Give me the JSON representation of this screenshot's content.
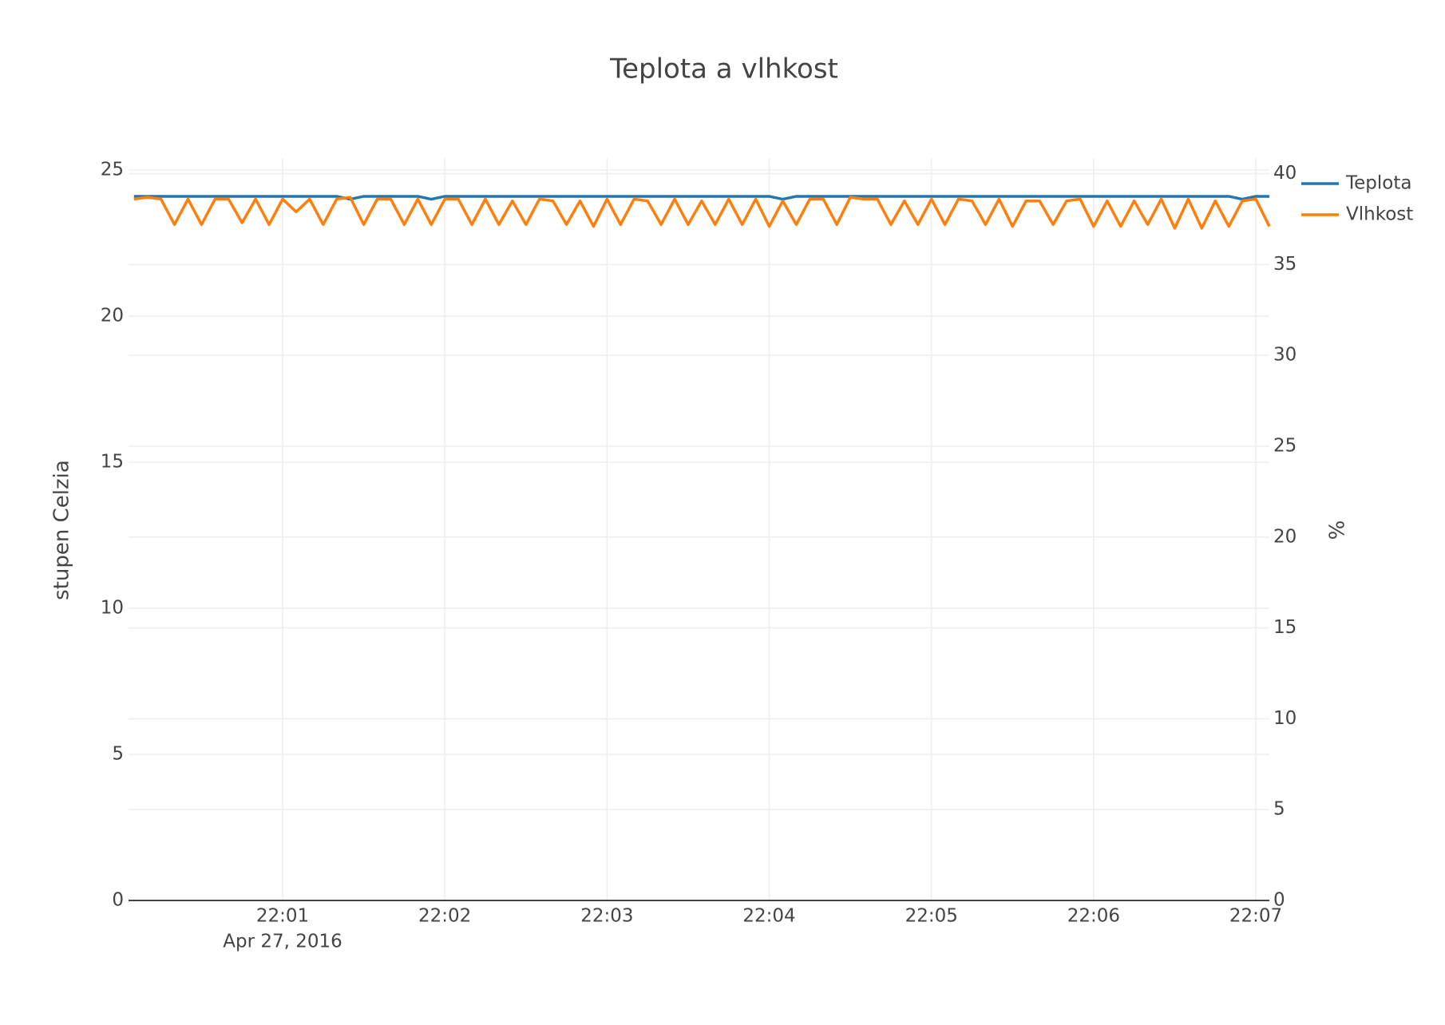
{
  "chart_data": {
    "type": "line",
    "title": "Teplota a vlhkost",
    "ylabel": "stupen Celzia",
    "y2label": "%",
    "x_date_label": "Apr 27, 2016",
    "x": [
      "22:00:05",
      "22:00:10",
      "22:00:15",
      "22:00:20",
      "22:00:25",
      "22:00:30",
      "22:00:35",
      "22:00:40",
      "22:00:45",
      "22:00:50",
      "22:00:55",
      "22:01:00",
      "22:01:05",
      "22:01:10",
      "22:01:15",
      "22:01:20",
      "22:01:25",
      "22:01:30",
      "22:01:35",
      "22:01:40",
      "22:01:45",
      "22:01:50",
      "22:01:55",
      "22:02:00",
      "22:02:05",
      "22:02:10",
      "22:02:15",
      "22:02:20",
      "22:02:25",
      "22:02:30",
      "22:02:35",
      "22:02:40",
      "22:02:45",
      "22:02:50",
      "22:02:55",
      "22:03:00",
      "22:03:05",
      "22:03:10",
      "22:03:15",
      "22:03:20",
      "22:03:25",
      "22:03:30",
      "22:03:35",
      "22:03:40",
      "22:03:45",
      "22:03:50",
      "22:03:55",
      "22:04:00",
      "22:04:05",
      "22:04:10",
      "22:04:15",
      "22:04:20",
      "22:04:25",
      "22:04:30",
      "22:04:35",
      "22:04:40",
      "22:04:45",
      "22:04:50",
      "22:04:55",
      "22:05:00",
      "22:05:05",
      "22:05:10",
      "22:05:15",
      "22:05:20",
      "22:05:25",
      "22:05:30",
      "22:05:35",
      "22:05:40",
      "22:05:45",
      "22:05:50",
      "22:05:55",
      "22:06:00",
      "22:06:05",
      "22:06:10",
      "22:06:15",
      "22:06:20",
      "22:06:25",
      "22:06:30",
      "22:06:35",
      "22:06:40",
      "22:06:45",
      "22:06:50",
      "22:06:55",
      "22:07:00",
      "22:07:05"
    ],
    "series": [
      {
        "name": "Teplota",
        "color": "#1f77b4",
        "axis": "y",
        "values": [
          24.1,
          24.1,
          24.1,
          24.1,
          24.1,
          24.1,
          24.1,
          24.1,
          24.1,
          24.1,
          24.1,
          24.1,
          24.1,
          24.1,
          24.1,
          24.1,
          24.0,
          24.1,
          24.1,
          24.1,
          24.1,
          24.1,
          24.0,
          24.1,
          24.1,
          24.1,
          24.1,
          24.1,
          24.1,
          24.1,
          24.1,
          24.1,
          24.1,
          24.1,
          24.1,
          24.1,
          24.1,
          24.1,
          24.1,
          24.1,
          24.1,
          24.1,
          24.1,
          24.1,
          24.1,
          24.1,
          24.1,
          24.1,
          24.0,
          24.1,
          24.1,
          24.1,
          24.1,
          24.1,
          24.1,
          24.1,
          24.1,
          24.1,
          24.1,
          24.1,
          24.1,
          24.1,
          24.1,
          24.1,
          24.1,
          24.1,
          24.1,
          24.1,
          24.1,
          24.1,
          24.1,
          24.1,
          24.1,
          24.1,
          24.1,
          24.1,
          24.1,
          24.1,
          24.1,
          24.1,
          24.1,
          24.1,
          24.0,
          24.1,
          24.1
        ]
      },
      {
        "name": "Vlhkost",
        "color": "#ff7f0e",
        "axis": "y2",
        "values": [
          38.6,
          38.7,
          38.6,
          37.2,
          38.6,
          37.2,
          38.6,
          38.6,
          37.3,
          38.6,
          37.2,
          38.6,
          37.9,
          38.6,
          37.2,
          38.6,
          38.7,
          37.2,
          38.6,
          38.6,
          37.2,
          38.6,
          37.2,
          38.6,
          38.6,
          37.2,
          38.6,
          37.2,
          38.5,
          37.2,
          38.6,
          38.5,
          37.2,
          38.5,
          37.1,
          38.6,
          37.2,
          38.6,
          38.5,
          37.2,
          38.6,
          37.2,
          38.5,
          37.2,
          38.6,
          37.2,
          38.6,
          37.1,
          38.5,
          37.2,
          38.6,
          38.6,
          37.2,
          38.7,
          38.6,
          38.6,
          37.2,
          38.5,
          37.2,
          38.6,
          37.2,
          38.6,
          38.5,
          37.2,
          38.6,
          37.1,
          38.5,
          38.5,
          37.2,
          38.5,
          38.6,
          37.1,
          38.5,
          37.1,
          38.5,
          37.2,
          38.6,
          37.0,
          38.6,
          37.0,
          38.5,
          37.1,
          38.5,
          38.6,
          37.1
        ]
      }
    ],
    "xlim": [
      "22:00:03",
      "22:07:05"
    ],
    "xticks": [
      "22:01",
      "22:02",
      "22:03",
      "22:04",
      "22:05",
      "22:06",
      "22:07"
    ],
    "ylim": [
      0,
      25
    ],
    "yticks": [
      0,
      5,
      10,
      15,
      20,
      25
    ],
    "y2lim": [
      0,
      40.2
    ],
    "y2ticks": [
      0,
      5,
      10,
      15,
      20,
      25,
      30,
      35,
      40
    ],
    "grid": true,
    "legend": "top-right"
  }
}
